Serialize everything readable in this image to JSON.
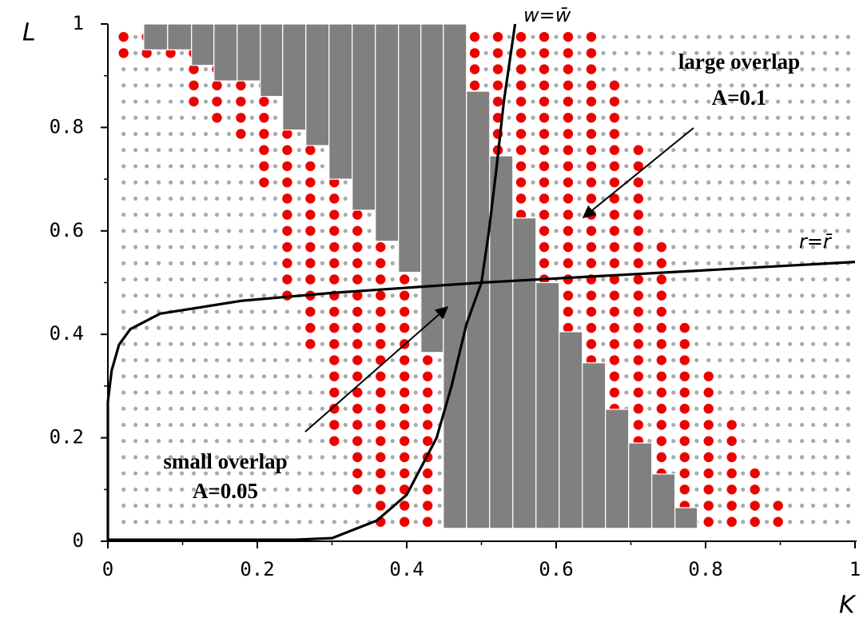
{
  "chart_data": {
    "type": "scatter",
    "x_label": "K",
    "y_label": "L",
    "xlim": [
      0,
      1
    ],
    "ylim": [
      0,
      1
    ],
    "xticks": [
      0,
      0.2,
      0.4,
      0.6,
      0.8,
      1
    ],
    "yticks": [
      0,
      0.2,
      0.4,
      0.6,
      0.8,
      1
    ],
    "xminorticks": [
      0.1,
      0.3,
      0.5,
      0.7,
      0.9
    ],
    "yminorticks": [
      0.1,
      0.3,
      0.5,
      0.7,
      0.9
    ],
    "grid_color": "#aaaaaa",
    "grid_x": [
      0.021,
      0.037,
      0.052,
      0.068,
      0.084,
      0.099,
      0.115,
      0.131,
      0.146,
      0.162,
      0.178,
      0.193,
      0.209,
      0.224,
      0.24,
      0.256,
      0.271,
      0.287,
      0.303,
      0.318,
      0.334,
      0.35,
      0.365,
      0.381,
      0.397,
      0.412,
      0.428,
      0.444,
      0.459,
      0.475,
      0.491,
      0.506,
      0.522,
      0.537,
      0.553,
      0.569,
      0.584,
      0.6,
      0.616,
      0.631,
      0.647,
      0.663,
      0.678,
      0.694,
      0.71,
      0.725,
      0.741,
      0.757,
      0.772,
      0.788,
      0.804,
      0.819,
      0.835,
      0.85,
      0.866,
      0.882,
      0.897,
      0.913,
      0.929,
      0.944,
      0.96,
      0.976,
      0.991
    ],
    "grid_y": [
      0.0375,
      0.06875,
      0.1,
      0.13125,
      0.1625,
      0.19375,
      0.225,
      0.25625,
      0.2875,
      0.31875,
      0.35,
      0.38125,
      0.4125,
      0.44375,
      0.475,
      0.50625,
      0.5375,
      0.56875,
      0.6,
      0.63125,
      0.6625,
      0.69375,
      0.725,
      0.75625,
      0.7875,
      0.81875,
      0.85,
      0.88125,
      0.9125,
      0.94375,
      0.975
    ],
    "red_dots": {
      "color": "#ee0000",
      "x": [
        0.021,
        0.052,
        0.084,
        0.115,
        0.146,
        0.178,
        0.209,
        0.24,
        0.271,
        0.303,
        0.334,
        0.365,
        0.397,
        0.428,
        0.459,
        0.491,
        0.522,
        0.553,
        0.584,
        0.616,
        0.647,
        0.678,
        0.71,
        0.741,
        0.772,
        0.804,
        0.835,
        0.866,
        0.897
      ],
      "y_range": [
        [
          0.94375,
          0.975
        ],
        [
          0.94375,
          0.975
        ],
        [
          0.94375,
          0.94375
        ],
        [
          0.85,
          0.94375
        ],
        [
          0.81875,
          0.94375
        ],
        [
          0.7875,
          0.94375
        ],
        [
          0.69375,
          0.94375
        ],
        [
          0.475,
          0.94375
        ],
        [
          0.38125,
          0.94375
        ],
        [
          0.19375,
          0.94375
        ],
        [
          0.1,
          0.975
        ],
        [
          0.0375,
          0.975
        ],
        [
          0.0375,
          0.975
        ],
        [
          0.0375,
          0.975
        ],
        [
          0.0375,
          0.975
        ],
        [
          0.0375,
          0.975
        ],
        [
          0.0375,
          0.975
        ],
        [
          0.0375,
          0.975
        ],
        [
          0.0375,
          0.975
        ],
        [
          0.0375,
          0.975
        ],
        [
          0.0375,
          0.975
        ],
        [
          0.0375,
          0.88125
        ],
        [
          0.0375,
          0.75625
        ],
        [
          0.0375,
          0.56875
        ],
        [
          0.0375,
          0.4125
        ],
        [
          0.0375,
          0.31875
        ],
        [
          0.0375,
          0.225
        ],
        [
          0.0375,
          0.13125
        ],
        [
          0.0375,
          0.06875
        ]
      ]
    },
    "bars": {
      "color": "#808080",
      "edges": [
        0.048,
        0.08,
        0.112,
        0.142,
        0.173,
        0.204,
        0.234,
        0.265,
        0.296,
        0.327,
        0.358,
        0.389,
        0.419,
        0.449,
        0.48,
        0.511,
        0.542,
        0.573,
        0.604,
        0.635,
        0.666,
        0.697,
        0.728,
        0.759,
        0.789
      ],
      "y0": [
        0.95,
        0.95,
        0.92,
        0.89,
        0.89,
        0.86,
        0.795,
        0.765,
        0.7,
        0.64,
        0.58,
        0.52,
        0.365,
        0.025,
        0.025,
        0.025,
        0.025,
        0.025,
        0.025,
        0.025,
        0.025,
        0.025,
        0.025,
        0.025
      ],
      "y1": [
        1,
        1,
        1,
        1,
        1,
        1,
        1,
        1,
        1,
        1,
        1,
        1,
        1,
        1,
        0.87,
        0.745,
        0.625,
        0.5,
        0.405,
        0.345,
        0.255,
        0.19,
        0.13,
        0.065
      ]
    },
    "curves": [
      {
        "name": "w=w̄",
        "color": "#000000",
        "x": [
          0,
          0.25,
          0.3,
          0.36,
          0.4,
          0.44,
          0.46,
          0.48,
          0.5,
          0.51,
          0.52,
          0.53,
          0.545
        ],
        "y": [
          0.003,
          0.003,
          0.006,
          0.04,
          0.09,
          0.2,
          0.3,
          0.42,
          0.5,
          0.6,
          0.72,
          0.85,
          1
        ]
      },
      {
        "name": "r=r̄",
        "color": "#000000",
        "x": [
          0,
          0,
          0.005,
          0.015,
          0.03,
          0.07,
          0.18,
          0.3,
          0.5,
          0.75,
          1
        ],
        "y": [
          0,
          0.27,
          0.33,
          0.38,
          0.41,
          0.44,
          0.465,
          0.48,
          0.5,
          0.52,
          0.54
        ]
      }
    ],
    "annotations": [
      "large overlap",
      "A=0.1",
      "small overlap",
      "A=0.05"
    ]
  }
}
